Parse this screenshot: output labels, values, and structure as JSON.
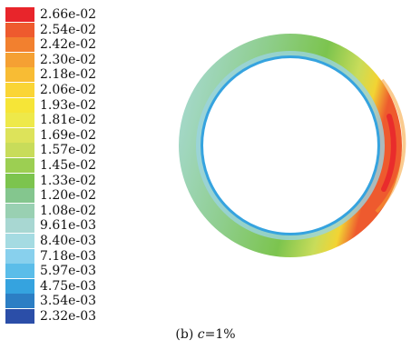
{
  "legend": {
    "labels": [
      "2.66e-02",
      "2.54e-02",
      "2.42e-02",
      "2.30e-02",
      "2.18e-02",
      "2.06e-02",
      "1.93e-02",
      "1.81e-02",
      "1.69e-02",
      "1.57e-02",
      "1.45e-02",
      "1.33e-02",
      "1.20e-02",
      "1.08e-02",
      "9.61e-03",
      "8.40e-03",
      "7.18e-03",
      "5.97e-03",
      "4.75e-03",
      "3.54e-03",
      "2.32e-03"
    ],
    "colors": [
      "#e8252b",
      "#ee5a2e",
      "#f2802f",
      "#f5a033",
      "#f8bc34",
      "#fad535",
      "#f6e537",
      "#eee94a",
      "#dde35a",
      "#c8dc5a",
      "#9ccf52",
      "#7cc44e",
      "#84c68e",
      "#99d0b2",
      "#a8d7d2",
      "#a5dbe2",
      "#88d0ed",
      "#5bbde9",
      "#35a3df",
      "#2c7ec4",
      "#2b4ea8"
    ]
  },
  "caption": {
    "prefix": "(b) ",
    "variable": "c",
    "suffix": "=1%"
  }
}
